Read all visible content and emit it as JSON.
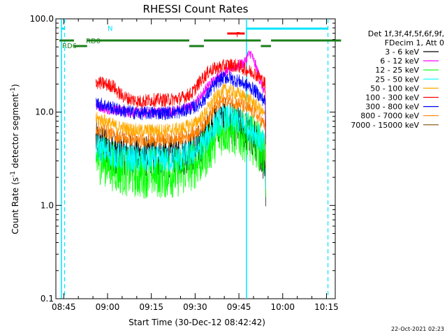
{
  "chart_data": {
    "type": "line",
    "title": "RHESSI Count Rates",
    "xlabel": "Start Time (30-Dec-12 08:42:42)",
    "ylabel_main": "Count Rate (s",
    "ylabel_sup1": "-1",
    "ylabel_mid": " detector segment",
    "ylabel_sup2": "-1",
    "ylabel_end": ")",
    "y_scale": "log",
    "ylim": [
      0.1,
      100
    ],
    "xlim_minutes": [
      -2.7,
      93.0
    ],
    "x_tick_minutes": [
      0,
      15,
      30,
      45,
      60,
      75,
      90
    ],
    "x_tick_labels": [
      "08:45",
      "09:00",
      "09:15",
      "09:30",
      "09:45",
      "10:00",
      "10:15"
    ],
    "y_tick_values": [
      0.1,
      1.0,
      10.0,
      100.0
    ],
    "y_tick_labels": [
      "0.1",
      "1.0",
      "10.0",
      "100.0"
    ],
    "legend_header": [
      "Det 1f,3f,4f,5f,6f,9f,",
      "FDecim 1, Att 0"
    ],
    "legend_placement": "right",
    "timestamp": "22-Oct-2021 02:23",
    "series": [
      {
        "name": "3 - 6 keV",
        "color": "#000000",
        "x": [
          11,
          12,
          14,
          18,
          22,
          26,
          30,
          35,
          40,
          45,
          48,
          50,
          52,
          54,
          55,
          57,
          58,
          60,
          62,
          64,
          65,
          66,
          67,
          68,
          69
        ],
        "y": [
          5,
          4.5,
          4.5,
          3.6,
          3.5,
          3.3,
          3.4,
          3.3,
          3.4,
          4.0,
          5,
          6.5,
          7.5,
          8.2,
          8.5,
          8.0,
          7.3,
          7.0,
          6.4,
          5.6,
          5.3,
          4.8,
          4.0,
          3.3,
          2.8
        ]
      },
      {
        "name": "6 - 12 keV",
        "color": "#ff00ff",
        "x": [
          11,
          14,
          18,
          22,
          26,
          30,
          35,
          40,
          44,
          47,
          50,
          53,
          56,
          58,
          60,
          62,
          63,
          64,
          66,
          67,
          68,
          69
        ],
        "y": [
          12,
          11,
          10.5,
          10,
          9.8,
          10,
          10,
          10.5,
          11.5,
          15,
          20,
          24,
          28,
          30,
          32,
          34,
          40,
          43,
          30,
          23,
          19,
          15
        ]
      },
      {
        "name": "12 - 25 keV",
        "color": "#00ff00",
        "x": [
          11,
          14,
          18,
          22,
          26,
          30,
          35,
          40,
          45,
          48,
          50,
          52,
          54,
          55,
          57,
          58,
          60,
          62,
          64,
          65,
          66,
          67,
          68,
          69
        ],
        "y": [
          3.2,
          3.0,
          2.5,
          2.3,
          2.2,
          2.25,
          2.2,
          2.3,
          2.8,
          3.4,
          4.3,
          5.4,
          6.3,
          6.6,
          6.5,
          6.2,
          6.0,
          5.5,
          5.2,
          5.0,
          4.7,
          4.3,
          3.8,
          3.5
        ]
      },
      {
        "name": "25 - 50 keV",
        "color": "#00ffff",
        "x": [
          11,
          14,
          18,
          22,
          26,
          30,
          35,
          40,
          45,
          48,
          50,
          52,
          54,
          55,
          57,
          58,
          60,
          62,
          64,
          65,
          66,
          67,
          68,
          69
        ],
        "y": [
          4.2,
          3.9,
          3.4,
          3.2,
          3.1,
          3.1,
          3.1,
          3.2,
          3.8,
          4.6,
          5.8,
          7.3,
          8.3,
          8.7,
          8.6,
          8.3,
          8.0,
          7.3,
          6.6,
          6.3,
          5.8,
          5.3,
          4.7,
          4.3
        ]
      },
      {
        "name": "50 - 100 keV",
        "color": "#ffaa00",
        "x": [
          11,
          14,
          18,
          22,
          26,
          30,
          35,
          40,
          45,
          48,
          50,
          52,
          54,
          55,
          57,
          58,
          60,
          62,
          64,
          65,
          66,
          67,
          68,
          69
        ],
        "y": [
          8.5,
          8.1,
          7.0,
          6.6,
          6.3,
          6.4,
          6.4,
          6.6,
          7.6,
          9.3,
          11.7,
          14.3,
          16.3,
          17.3,
          17.0,
          16.3,
          15.6,
          14.4,
          13.4,
          12.7,
          11.8,
          10.8,
          9.9,
          9.1
        ]
      },
      {
        "name": "100 - 300 keV",
        "color": "#ff0000",
        "x": [
          11,
          14,
          17,
          18,
          20,
          22,
          26,
          30,
          35,
          40,
          44,
          47,
          50,
          53,
          56,
          58,
          60,
          62,
          63,
          64,
          65,
          66,
          67,
          68,
          69
        ],
        "y": [
          21,
          20,
          19,
          17,
          15,
          14,
          13,
          13.5,
          13.5,
          14,
          16,
          22,
          28,
          30,
          32,
          32,
          31,
          29,
          28,
          27,
          27,
          25,
          24,
          22,
          20
        ]
      },
      {
        "name": "300 - 800 keV",
        "color": "#0000ff",
        "x": [
          11,
          14,
          18,
          22,
          26,
          30,
          35,
          40,
          45,
          48,
          50,
          52,
          54,
          55,
          57,
          58,
          60,
          62,
          64,
          65,
          66,
          67,
          68,
          69
        ],
        "y": [
          12.5,
          11.9,
          10.7,
          10.1,
          9.7,
          9.8,
          9.8,
          10.1,
          11.4,
          13.5,
          16.7,
          20.2,
          22.7,
          23.7,
          23.2,
          22.3,
          21.5,
          19.9,
          18.4,
          17.5,
          16.4,
          15.1,
          13.9,
          12.9
        ]
      },
      {
        "name": "800 - 7000 keV",
        "color": "#ff7f00",
        "x": [
          11,
          14,
          18,
          22,
          26,
          30,
          35,
          40,
          45,
          48,
          50,
          52,
          54,
          55,
          57,
          58,
          60,
          62,
          64,
          65,
          66,
          67,
          68,
          69
        ],
        "y": [
          6.7,
          6.3,
          5.5,
          5.2,
          4.9,
          5.0,
          5.0,
          5.2,
          6.0,
          7.3,
          9.2,
          11.3,
          12.8,
          13.5,
          13.3,
          12.8,
          12.3,
          11.3,
          10.5,
          10.0,
          9.3,
          8.5,
          7.8,
          7.2
        ]
      },
      {
        "name": "7000 - 15000 keV",
        "color": "#7f4f00",
        "x": [],
        "y": []
      }
    ],
    "annotations": {
      "N_label": "N",
      "F_label": "F",
      "RD0_label": "RD0",
      "RD6_label": "RD6",
      "cyan_bars": [
        [
          -0.8,
          0.3
        ],
        [
          62.5,
          90.5
        ]
      ],
      "cyan_vlines_solid": [
        -0.8,
        62.6
      ],
      "cyan_vlines_dashed": [
        0.3,
        90.5
      ],
      "red_bar": [
        56,
        62
      ],
      "green_bar_upper": [
        [
          -1.5,
          3.5
        ],
        [
          8,
          43
        ],
        [
          48,
          67.5
        ],
        [
          71,
          95
        ]
      ],
      "green_bar_lower": [
        [
          3.5,
          8
        ],
        [
          43,
          48
        ],
        [
          67.5,
          71
        ]
      ]
    }
  }
}
